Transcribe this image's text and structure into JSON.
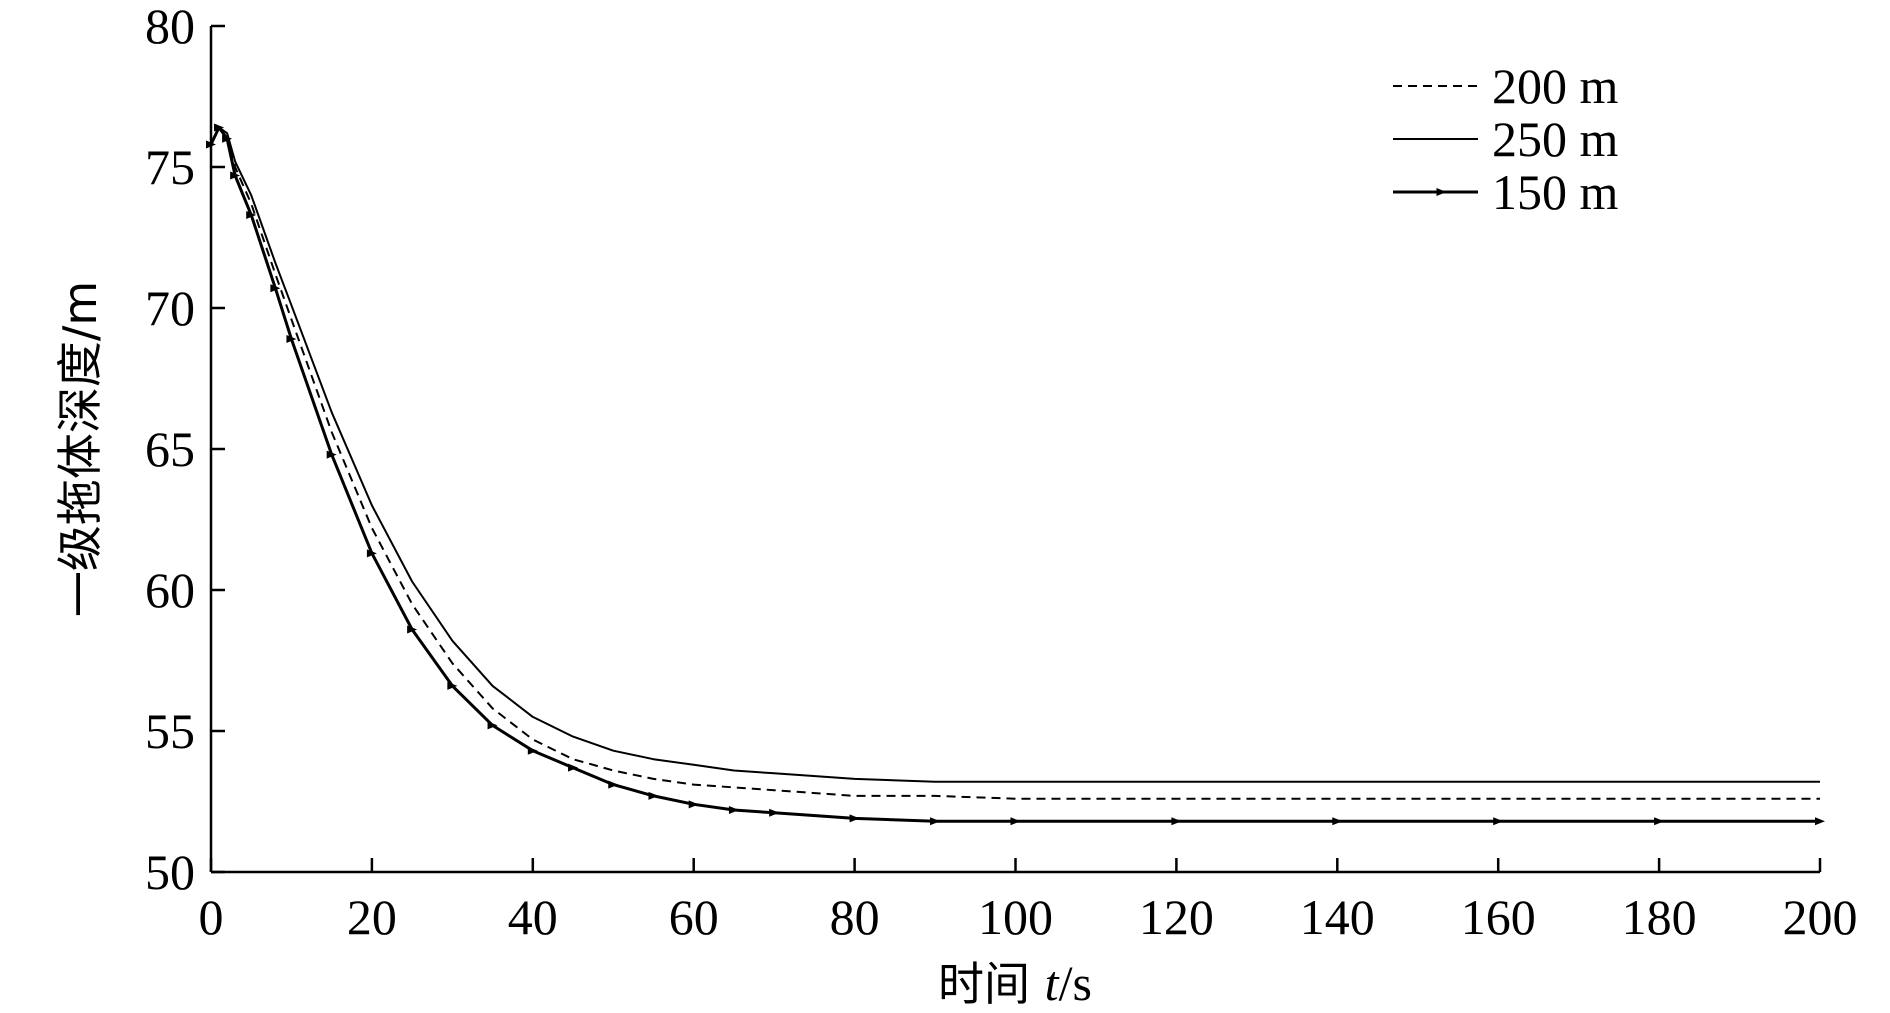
{
  "chart_data": {
    "type": "line",
    "xlabel": "时间 t/s",
    "xlabel_parts": [
      "时间 ",
      "t",
      "/s"
    ],
    "ylabel": "一级拖体深度/m",
    "xlim": [
      0,
      200
    ],
    "ylim": [
      50,
      80
    ],
    "x_ticks": [
      0,
      20,
      40,
      60,
      80,
      100,
      120,
      140,
      160,
      180,
      200
    ],
    "y_ticks": [
      50,
      55,
      60,
      65,
      70,
      75,
      80
    ],
    "grid": false,
    "legend_position": "top-right",
    "series": [
      {
        "name": "200 m",
        "style": "dashed",
        "x": [
          0,
          1,
          2,
          3,
          5,
          8,
          10,
          15,
          20,
          25,
          30,
          35,
          40,
          45,
          50,
          55,
          60,
          65,
          70,
          80,
          90,
          100,
          120,
          140,
          160,
          180,
          200
        ],
        "y": [
          75.8,
          76.4,
          76.2,
          75.0,
          73.7,
          71.2,
          69.6,
          65.6,
          62.2,
          59.5,
          57.4,
          55.8,
          54.7,
          54.0,
          53.6,
          53.3,
          53.1,
          53.0,
          52.9,
          52.7,
          52.7,
          52.6,
          52.6,
          52.6,
          52.6,
          52.6,
          52.6
        ]
      },
      {
        "name": "250 m",
        "style": "solid",
        "x": [
          0,
          1,
          2,
          3,
          5,
          8,
          10,
          15,
          20,
          25,
          30,
          35,
          40,
          45,
          50,
          55,
          60,
          65,
          70,
          80,
          90,
          100,
          120,
          140,
          160,
          180,
          200
        ],
        "y": [
          75.8,
          76.4,
          76.2,
          75.2,
          74.0,
          71.6,
          70.1,
          66.3,
          63.0,
          60.3,
          58.2,
          56.6,
          55.5,
          54.8,
          54.3,
          54.0,
          53.8,
          53.6,
          53.5,
          53.3,
          53.2,
          53.2,
          53.2,
          53.2,
          53.2,
          53.2,
          53.2
        ]
      },
      {
        "name": "150 m",
        "style": "solid-marker",
        "x": [
          0,
          1,
          2,
          3,
          5,
          8,
          10,
          15,
          20,
          25,
          30,
          35,
          40,
          45,
          50,
          55,
          60,
          65,
          70,
          80,
          90,
          100,
          120,
          140,
          160,
          180,
          200
        ],
        "y": [
          75.8,
          76.4,
          76.0,
          74.7,
          73.3,
          70.7,
          68.9,
          64.8,
          61.3,
          58.6,
          56.6,
          55.2,
          54.3,
          53.7,
          53.1,
          52.7,
          52.4,
          52.2,
          52.1,
          51.9,
          51.8,
          51.8,
          51.8,
          51.8,
          51.8,
          51.8,
          51.8
        ]
      }
    ]
  }
}
